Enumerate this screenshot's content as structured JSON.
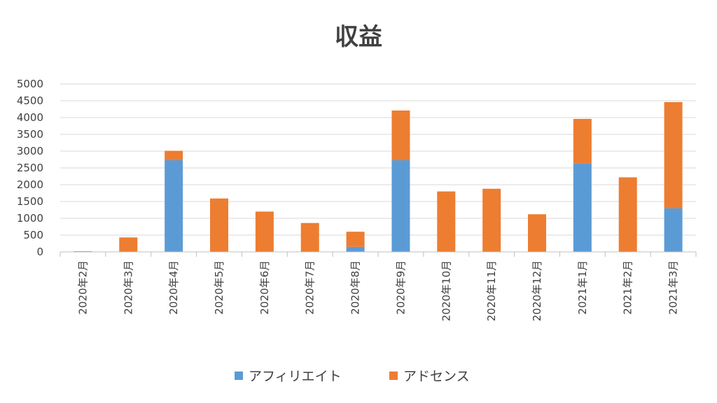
{
  "chart_data": {
    "type": "bar",
    "stacked": true,
    "title": "収益",
    "xlabel": "",
    "ylabel": "",
    "categories": [
      "2020年2月",
      "2020年3月",
      "2020年4月",
      "2020年5月",
      "2020年6月",
      "2020年7月",
      "2020年8月",
      "2020年9月",
      "2020年10月",
      "2020年11月",
      "2020年12月",
      "2021年1月",
      "2021年2月",
      "2021年3月"
    ],
    "series": [
      {
        "name": "アフィリエイト",
        "color": "#5B9BD5",
        "values": [
          20,
          0,
          2730,
          0,
          0,
          0,
          150,
          2730,
          0,
          0,
          0,
          2640,
          0,
          1300
        ]
      },
      {
        "name": "アドセンス",
        "color": "#ED7D31",
        "values": [
          0,
          430,
          280,
          1590,
          1200,
          860,
          450,
          1480,
          1800,
          1880,
          1120,
          1320,
          2220,
          3160
        ]
      }
    ],
    "ylim": [
      0,
      5000
    ],
    "yticks": [
      0,
      500,
      1000,
      1500,
      2000,
      2500,
      3000,
      3500,
      4000,
      4500,
      5000
    ],
    "grid": true,
    "legend_position": "bottom"
  }
}
